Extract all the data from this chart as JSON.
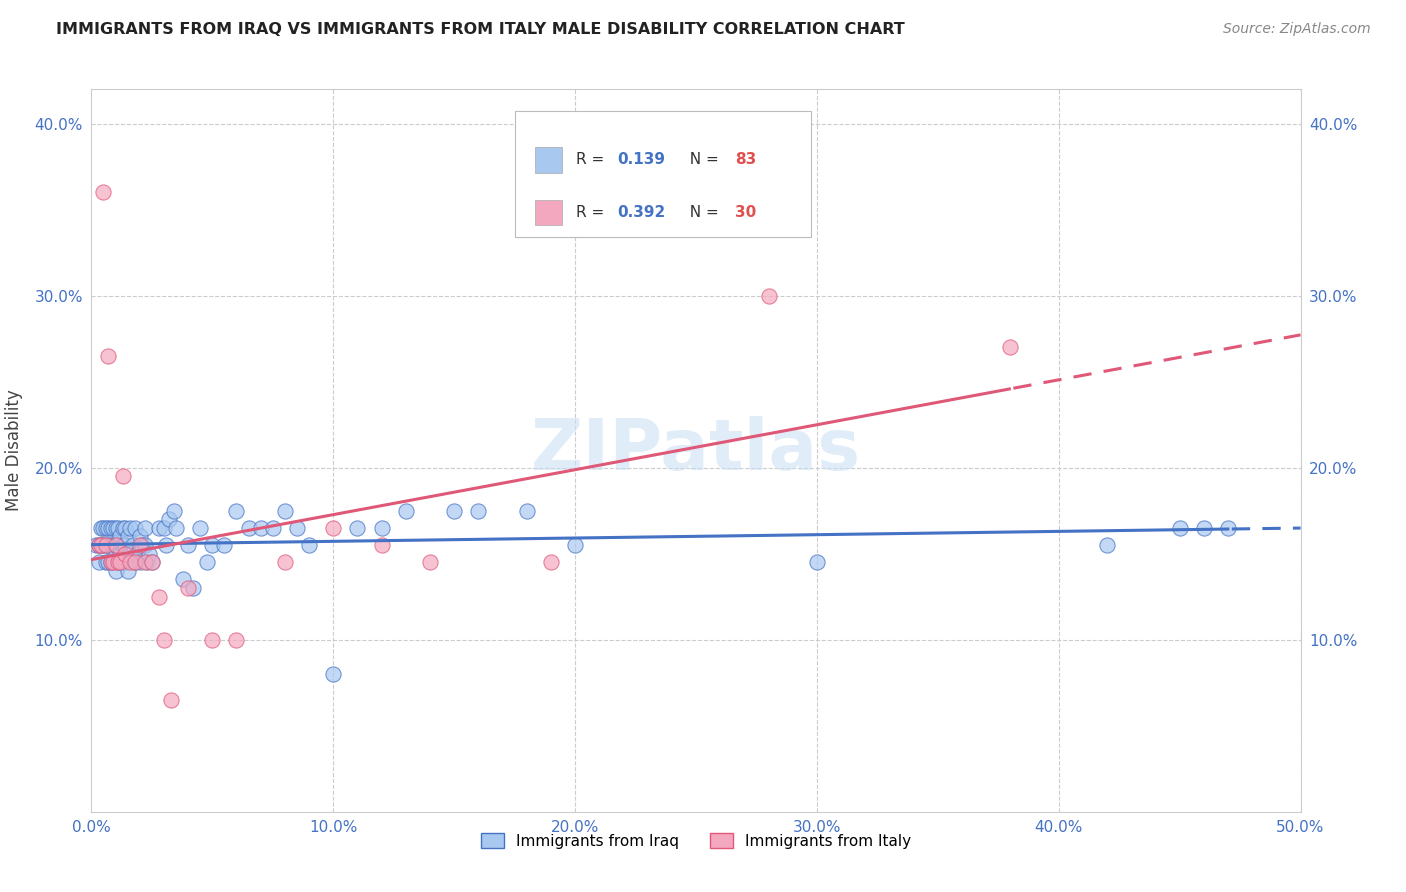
{
  "title": "IMMIGRANTS FROM IRAQ VS IMMIGRANTS FROM ITALY MALE DISABILITY CORRELATION CHART",
  "source": "Source: ZipAtlas.com",
  "ylabel": "Male Disability",
  "xlim": [
    0.0,
    0.5
  ],
  "ylim": [
    0.0,
    0.42
  ],
  "xticks": [
    0.0,
    0.1,
    0.2,
    0.3,
    0.4,
    0.5
  ],
  "yticks": [
    0.1,
    0.2,
    0.3,
    0.4
  ],
  "ytick_labels": [
    "10.0%",
    "20.0%",
    "30.0%",
    "40.0%"
  ],
  "xtick_labels": [
    "0.0%",
    "10.0%",
    "20.0%",
    "30.0%",
    "40.0%",
    "50.0%"
  ],
  "iraq_color": "#a8c8f0",
  "italy_color": "#f4a8c0",
  "iraq_line_color": "#4472c4",
  "italy_line_color": "#e05878",
  "r_iraq": "0.139",
  "n_iraq": "83",
  "r_italy": "0.392",
  "n_italy": "30",
  "watermark": "ZIPatlas",
  "background_color": "#ffffff",
  "grid_color": "#cccccc",
  "iraq_x": [
    0.002,
    0.003,
    0.003,
    0.004,
    0.004,
    0.005,
    0.005,
    0.006,
    0.006,
    0.006,
    0.007,
    0.007,
    0.007,
    0.008,
    0.008,
    0.008,
    0.009,
    0.009,
    0.009,
    0.01,
    0.01,
    0.01,
    0.01,
    0.011,
    0.011,
    0.011,
    0.012,
    0.012,
    0.013,
    0.013,
    0.013,
    0.014,
    0.014,
    0.014,
    0.015,
    0.015,
    0.016,
    0.016,
    0.017,
    0.018,
    0.018,
    0.019,
    0.02,
    0.02,
    0.021,
    0.022,
    0.022,
    0.023,
    0.024,
    0.025,
    0.028,
    0.03,
    0.031,
    0.032,
    0.034,
    0.035,
    0.038,
    0.04,
    0.042,
    0.045,
    0.048,
    0.05,
    0.055,
    0.06,
    0.065,
    0.07,
    0.075,
    0.08,
    0.085,
    0.09,
    0.1,
    0.11,
    0.12,
    0.13,
    0.15,
    0.16,
    0.18,
    0.2,
    0.3,
    0.42,
    0.45,
    0.46,
    0.47
  ],
  "iraq_y": [
    0.155,
    0.145,
    0.155,
    0.155,
    0.165,
    0.155,
    0.165,
    0.145,
    0.155,
    0.165,
    0.145,
    0.155,
    0.165,
    0.145,
    0.155,
    0.165,
    0.145,
    0.155,
    0.165,
    0.14,
    0.15,
    0.155,
    0.165,
    0.145,
    0.155,
    0.165,
    0.15,
    0.16,
    0.145,
    0.155,
    0.165,
    0.145,
    0.155,
    0.165,
    0.14,
    0.16,
    0.15,
    0.165,
    0.155,
    0.145,
    0.165,
    0.15,
    0.145,
    0.16,
    0.155,
    0.155,
    0.165,
    0.145,
    0.15,
    0.145,
    0.165,
    0.165,
    0.155,
    0.17,
    0.175,
    0.165,
    0.135,
    0.155,
    0.13,
    0.165,
    0.145,
    0.155,
    0.155,
    0.175,
    0.165,
    0.165,
    0.165,
    0.175,
    0.165,
    0.155,
    0.08,
    0.165,
    0.165,
    0.175,
    0.175,
    0.175,
    0.175,
    0.155,
    0.145,
    0.155,
    0.165,
    0.165,
    0.165
  ],
  "italy_x": [
    0.003,
    0.004,
    0.005,
    0.006,
    0.007,
    0.008,
    0.009,
    0.01,
    0.011,
    0.012,
    0.013,
    0.014,
    0.016,
    0.018,
    0.02,
    0.022,
    0.025,
    0.028,
    0.03,
    0.033,
    0.04,
    0.05,
    0.06,
    0.08,
    0.1,
    0.12,
    0.14,
    0.19,
    0.28,
    0.38
  ],
  "italy_y": [
    0.155,
    0.155,
    0.36,
    0.155,
    0.265,
    0.145,
    0.145,
    0.155,
    0.145,
    0.145,
    0.195,
    0.15,
    0.145,
    0.145,
    0.155,
    0.145,
    0.145,
    0.125,
    0.1,
    0.065,
    0.13,
    0.1,
    0.1,
    0.145,
    0.165,
    0.155,
    0.145,
    0.145,
    0.3,
    0.27
  ]
}
